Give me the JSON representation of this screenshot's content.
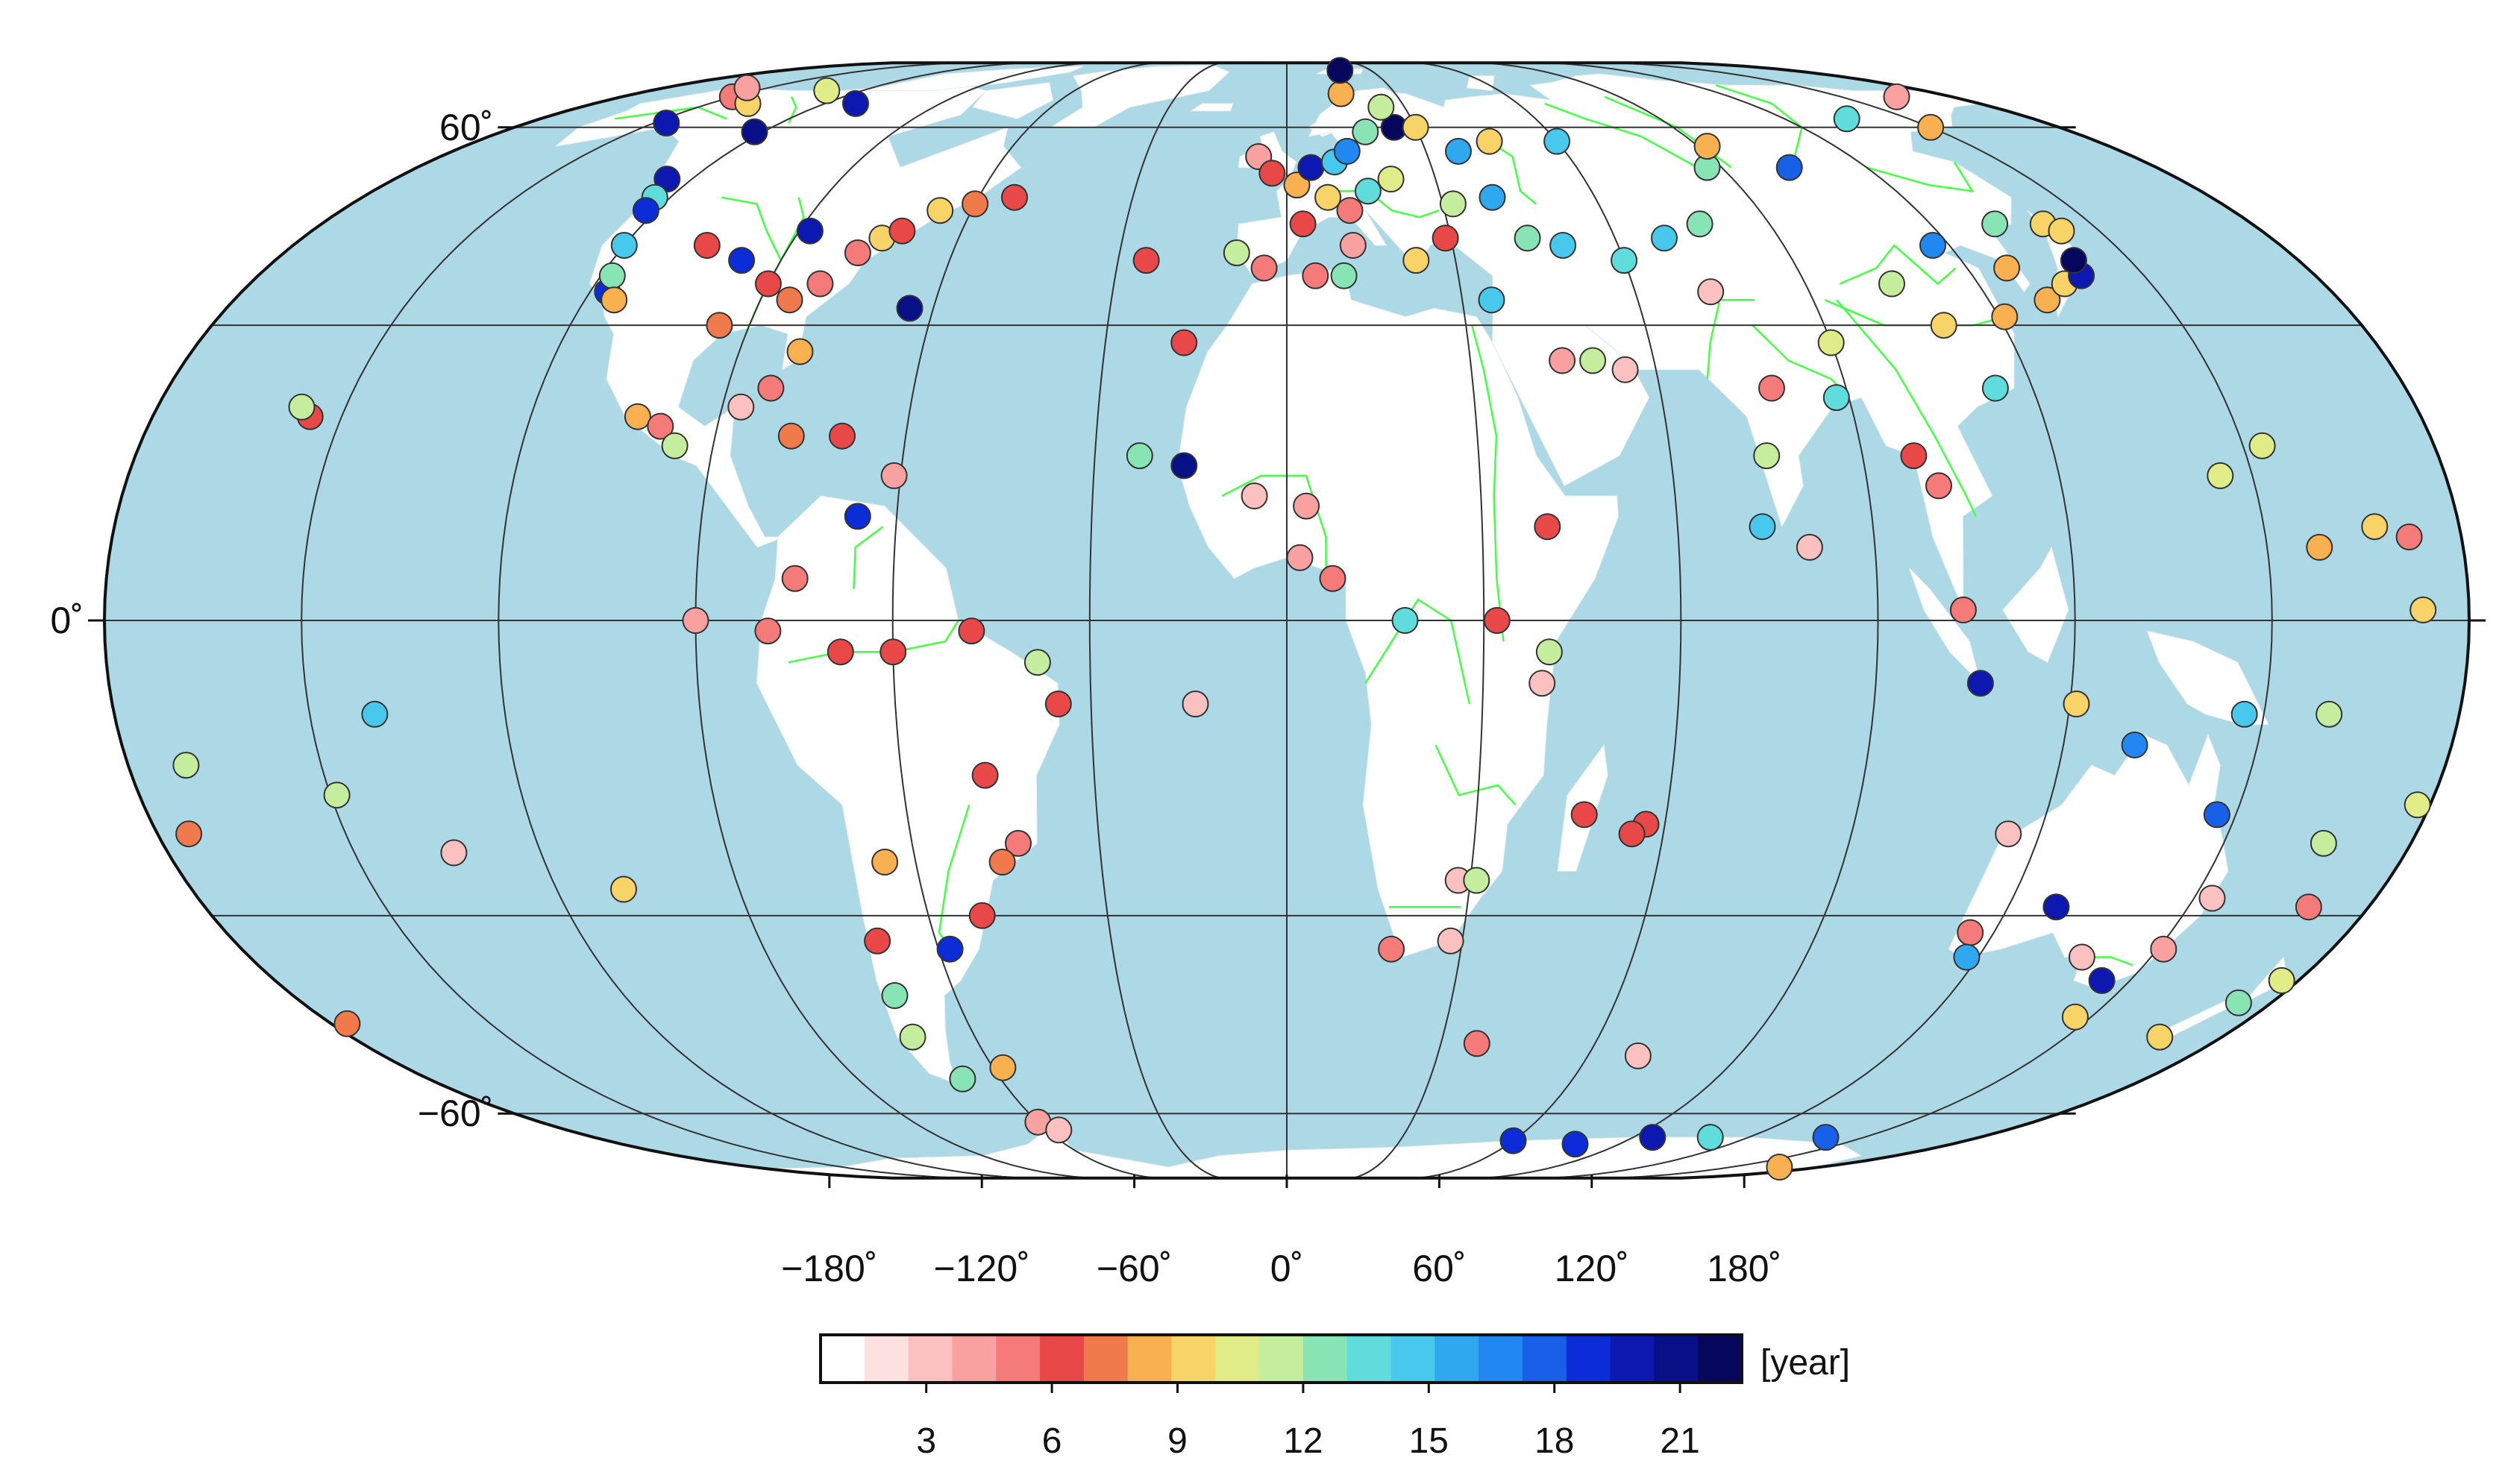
{
  "map": {
    "projection": "Robinson-like world map",
    "central_meridian": 0,
    "ocean_color": "#add8e6",
    "land_color": "#ffffff",
    "river_color": "#44ff44",
    "grid_color": "#333333",
    "lat_labels": [
      "60˚",
      "0˚",
      "−60˚"
    ],
    "lon_labels": [
      "−180˚",
      "−120˚",
      "−60˚",
      "0˚",
      "60˚",
      "120˚",
      "180˚"
    ]
  },
  "colorbar": {
    "unit_label": "[year]",
    "tick_labels": [
      "3",
      "6",
      "9",
      "12",
      "15",
      "18",
      "21"
    ],
    "colors": [
      "#ffffff",
      "#fde0e0",
      "#fbc0c0",
      "#f9a0a0",
      "#f57a7a",
      "#e84848",
      "#f07a4c",
      "#f8b050",
      "#f8d468",
      "#e0ec88",
      "#c4ee9e",
      "#88e4b4",
      "#60dcdc",
      "#48c8ec",
      "#30a8f0",
      "#2088f0",
      "#1860e8",
      "#0c2cd8",
      "#0c18b0",
      "#081088",
      "#06065c"
    ]
  },
  "chart_data": {
    "type": "scatter",
    "description_of_values": "monitoring stations colored by record length in years",
    "color_range": [
      1,
      22
    ],
    "points": [
      {
        "lon": -150,
        "lat": 68,
        "v": 5
      },
      {
        "lon": -130,
        "lat": 70,
        "v": 10
      },
      {
        "lon": -140,
        "lat": 66,
        "v": 9
      },
      {
        "lon": -156,
        "lat": 71,
        "v": 4
      },
      {
        "lon": -147,
        "lat": 61,
        "v": 20
      },
      {
        "lon": -122,
        "lat": 59,
        "v": 21
      },
      {
        "lon": -112,
        "lat": 66,
        "v": 20
      },
      {
        "lon": -125,
        "lat": 50,
        "v": 20
      },
      {
        "lon": -123,
        "lat": 47,
        "v": 14
      },
      {
        "lon": -122,
        "lat": 45,
        "v": 19
      },
      {
        "lon": -120,
        "lat": 40,
        "v": 15
      },
      {
        "lon": -117,
        "lat": 34,
        "v": 19
      },
      {
        "lon": -118,
        "lat": 36,
        "v": 13
      },
      {
        "lon": -115,
        "lat": 33,
        "v": 8
      },
      {
        "lon": -105,
        "lat": 40,
        "v": 6
      },
      {
        "lon": -97,
        "lat": 38,
        "v": 19
      },
      {
        "lon": -95,
        "lat": 30,
        "v": 7
      },
      {
        "lon": -90,
        "lat": 35,
        "v": 6
      },
      {
        "lon": -88,
        "lat": 42,
        "v": 20
      },
      {
        "lon": -85,
        "lat": 33,
        "v": 7
      },
      {
        "lon": -80,
        "lat": 27,
        "v": 8
      },
      {
        "lon": -81,
        "lat": 35,
        "v": 5
      },
      {
        "lon": -77,
        "lat": 39,
        "v": 5
      },
      {
        "lon": -74,
        "lat": 41,
        "v": 9
      },
      {
        "lon": -71,
        "lat": 42,
        "v": 6
      },
      {
        "lon": -66,
        "lat": 45,
        "v": 9
      },
      {
        "lon": -64,
        "lat": 32,
        "v": 21
      },
      {
        "lon": -60,
        "lat": 46,
        "v": 7
      },
      {
        "lon": -53,
        "lat": 47,
        "v": 6
      },
      {
        "lon": -103,
        "lat": 20,
        "v": 8
      },
      {
        "lon": -99,
        "lat": 19,
        "v": 5
      },
      {
        "lon": -96,
        "lat": 17,
        "v": 12
      },
      {
        "lon": -87,
        "lat": 21,
        "v": 3
      },
      {
        "lon": -83,
        "lat": 23,
        "v": 5
      },
      {
        "lon": -78,
        "lat": 18,
        "v": 7
      },
      {
        "lon": -70,
        "lat": 18,
        "v": 6
      },
      {
        "lon": -61,
        "lat": 14,
        "v": 4
      },
      {
        "lon": -66,
        "lat": 10,
        "v": 19
      },
      {
        "lon": -75,
        "lat": 4,
        "v": 5
      },
      {
        "lon": -79,
        "lat": -1,
        "v": 5
      },
      {
        "lon": -68,
        "lat": -3,
        "v": 6
      },
      {
        "lon": -60,
        "lat": -3,
        "v": 6
      },
      {
        "lon": -48,
        "lat": -1,
        "v": 6
      },
      {
        "lon": -38,
        "lat": -4,
        "v": 11
      },
      {
        "lon": -35,
        "lat": -8,
        "v": 6
      },
      {
        "lon": -47,
        "lat": -15,
        "v": 6
      },
      {
        "lon": -43,
        "lat": -22,
        "v": 5
      },
      {
        "lon": -46,
        "lat": -24,
        "v": 7
      },
      {
        "lon": -51,
        "lat": -30,
        "v": 6
      },
      {
        "lon": -58,
        "lat": -34,
        "v": 19
      },
      {
        "lon": -65,
        "lat": -24,
        "v": 8
      },
      {
        "lon": -70,
        "lat": -33,
        "v": 6
      },
      {
        "lon": -71,
        "lat": -40,
        "v": 13
      },
      {
        "lon": -72,
        "lat": -46,
        "v": 11
      },
      {
        "lon": -68,
        "lat": -53,
        "v": 13
      },
      {
        "lon": -58,
        "lat": -51,
        "v": 8
      },
      {
        "lon": -60,
        "lat": -62,
        "v": 4
      },
      {
        "lon": -57,
        "lat": -64,
        "v": 3
      },
      {
        "lon": -155,
        "lat": 20,
        "v": 6
      },
      {
        "lon": -157,
        "lat": 21,
        "v": 11
      },
      {
        "lon": -149,
        "lat": -17,
        "v": 12
      },
      {
        "lon": -140,
        "lat": -9,
        "v": 15
      },
      {
        "lon": -171,
        "lat": -14,
        "v": 11
      },
      {
        "lon": -175,
        "lat": -21,
        "v": 7
      },
      {
        "lon": -109,
        "lat": -27,
        "v": 9
      },
      {
        "lon": -134,
        "lat": -23,
        "v": 3
      },
      {
        "lon": -177,
        "lat": -44,
        "v": 7
      },
      {
        "lon": -90,
        "lat": 0,
        "v": 4
      },
      {
        "lon": -25,
        "lat": 38,
        "v": 6
      },
      {
        "lon": -17,
        "lat": 28,
        "v": 6
      },
      {
        "lon": -16,
        "lat": 15,
        "v": 21
      },
      {
        "lon": -23,
        "lat": 16,
        "v": 13
      },
      {
        "lon": -14,
        "lat": -8,
        "v": 3
      },
      {
        "lon": -6,
        "lat": 54,
        "v": 4
      },
      {
        "lon": -3,
        "lat": 51,
        "v": 6
      },
      {
        "lon": 2,
        "lat": 49,
        "v": 8
      },
      {
        "lon": 5,
        "lat": 52,
        "v": 20
      },
      {
        "lon": 10,
        "lat": 53,
        "v": 15
      },
      {
        "lon": 13,
        "lat": 55,
        "v": 17
      },
      {
        "lon": 18,
        "lat": 59,
        "v": 13
      },
      {
        "lon": 25,
        "lat": 60,
        "v": 22
      },
      {
        "lon": 24,
        "lat": 65,
        "v": 11
      },
      {
        "lon": 30,
        "lat": 60,
        "v": 9
      },
      {
        "lon": 15,
        "lat": 69,
        "v": 8
      },
      {
        "lon": 19,
        "lat": 79,
        "v": 22
      },
      {
        "lon": 8,
        "lat": 47,
        "v": 9
      },
      {
        "lon": 12,
        "lat": 45,
        "v": 5
      },
      {
        "lon": 16,
        "lat": 48,
        "v": 14
      },
      {
        "lon": 21,
        "lat": 50,
        "v": 10
      },
      {
        "lon": 3,
        "lat": 43,
        "v": 6
      },
      {
        "lon": -9,
        "lat": 39,
        "v": 12
      },
      {
        "lon": -4,
        "lat": 37,
        "v": 5
      },
      {
        "lon": 12,
        "lat": 40,
        "v": 4
      },
      {
        "lon": 23,
        "lat": 38,
        "v": 9
      },
      {
        "lon": 29,
        "lat": 41,
        "v": 6
      },
      {
        "lon": 35,
        "lat": 33,
        "v": 15
      },
      {
        "lon": 44,
        "lat": 41,
        "v": 13
      },
      {
        "lon": 50,
        "lat": 40,
        "v": 15
      },
      {
        "lon": 37,
        "lat": 55,
        "v": 16
      },
      {
        "lon": 45,
        "lat": 57,
        "v": 9
      },
      {
        "lon": 60,
        "lat": 57,
        "v": 15
      },
      {
        "lon": 40,
        "lat": 47,
        "v": 16
      },
      {
        "lon": 32,
        "lat": 46,
        "v": 11
      },
      {
        "lon": 5,
        "lat": 36,
        "v": 5
      },
      {
        "lon": 10,
        "lat": 36,
        "v": 13
      },
      {
        "lon": 3,
        "lat": 11,
        "v": 4
      },
      {
        "lon": 2,
        "lat": 6,
        "v": 4
      },
      {
        "lon": 7,
        "lat": 4,
        "v": 5
      },
      {
        "lon": 18,
        "lat": 0,
        "v": 14
      },
      {
        "lon": -5,
        "lat": 12,
        "v": 3
      },
      {
        "lon": 32,
        "lat": 0,
        "v": 6
      },
      {
        "lon": 39,
        "lat": -6,
        "v": 3
      },
      {
        "lon": 40,
        "lat": -3,
        "v": 11
      },
      {
        "lon": 40,
        "lat": 9,
        "v": 6
      },
      {
        "lon": 45,
        "lat": 26,
        "v": 4
      },
      {
        "lon": 50,
        "lat": 26,
        "v": 11
      },
      {
        "lon": 55,
        "lat": 25,
        "v": 3
      },
      {
        "lon": 47,
        "lat": -19,
        "v": 6
      },
      {
        "lon": 57,
        "lat": -20,
        "v": 6
      },
      {
        "lon": 55,
        "lat": -21,
        "v": 6
      },
      {
        "lon": 28,
        "lat": -26,
        "v": 3
      },
      {
        "lon": 31,
        "lat": -26,
        "v": 11
      },
      {
        "lon": 18,
        "lat": -34,
        "v": 5
      },
      {
        "lon": 28,
        "lat": -33,
        "v": 3
      },
      {
        "lon": 37,
        "lat": -47,
        "v": 5
      },
      {
        "lon": 70,
        "lat": -49,
        "v": 3
      },
      {
        "lon": 60,
        "lat": 38,
        "v": 14
      },
      {
        "lon": 69,
        "lat": 41,
        "v": 15
      },
      {
        "lon": 77,
        "lat": 43,
        "v": 13
      },
      {
        "lon": 73,
        "lat": 34,
        "v": 3
      },
      {
        "lon": 78,
        "lat": 23,
        "v": 5
      },
      {
        "lon": 75,
        "lat": 16,
        "v": 11
      },
      {
        "lon": 73,
        "lat": 9,
        "v": 15
      },
      {
        "lon": 80,
        "lat": 7,
        "v": 3
      },
      {
        "lon": 88,
        "lat": 22,
        "v": 14
      },
      {
        "lon": 90,
        "lat": 28,
        "v": 10
      },
      {
        "lon": 98,
        "lat": 16,
        "v": 6
      },
      {
        "lon": 101,
        "lat": 13,
        "v": 5
      },
      {
        "lon": 103,
        "lat": 1,
        "v": 5
      },
      {
        "lon": 87,
        "lat": 52,
        "v": 13
      },
      {
        "lon": 104,
        "lat": 52,
        "v": 18
      },
      {
        "lon": 92,
        "lat": 56,
        "v": 8
      },
      {
        "lon": 117,
        "lat": 40,
        "v": 17
      },
      {
        "lon": 121,
        "lat": 31,
        "v": 8
      },
      {
        "lon": 114,
        "lat": 23,
        "v": 14
      },
      {
        "lon": 105,
        "lat": 35,
        "v": 11
      },
      {
        "lon": 110,
        "lat": 30,
        "v": 9
      },
      {
        "lon": 127,
        "lat": 37,
        "v": 8
      },
      {
        "lon": 130,
        "lat": 33,
        "v": 8
      },
      {
        "lon": 135,
        "lat": 35,
        "v": 9
      },
      {
        "lon": 139,
        "lat": 36,
        "v": 20
      },
      {
        "lon": 140,
        "lat": 38,
        "v": 22
      },
      {
        "lon": 141,
        "lat": 43,
        "v": 9
      },
      {
        "lon": 143,
        "lat": 42,
        "v": 9
      },
      {
        "lon": 132,
        "lat": 43,
        "v": 13
      },
      {
        "lon": 150,
        "lat": 60,
        "v": 8
      },
      {
        "lon": 135,
        "lat": 62,
        "v": 14
      },
      {
        "lon": 165,
        "lat": 68,
        "v": 4
      },
      {
        "lon": 145,
        "lat": 14,
        "v": 10
      },
      {
        "lon": 153,
        "lat": 17,
        "v": 10
      },
      {
        "lon": 158,
        "lat": 7,
        "v": 8
      },
      {
        "lon": 167,
        "lat": 9,
        "v": 9
      },
      {
        "lon": 173,
        "lat": 1,
        "v": 9
      },
      {
        "lon": 172,
        "lat": 8,
        "v": 5
      },
      {
        "lon": 178,
        "lat": -18,
        "v": 10
      },
      {
        "lon": 166,
        "lat": -22,
        "v": 11
      },
      {
        "lon": 160,
        "lat": -9,
        "v": 11
      },
      {
        "lon": 147,
        "lat": -9,
        "v": 15
      },
      {
        "lon": 131,
        "lat": -12,
        "v": 17
      },
      {
        "lon": 121,
        "lat": -8,
        "v": 9
      },
      {
        "lon": 106,
        "lat": -6,
        "v": 20
      },
      {
        "lon": 115,
        "lat": -21,
        "v": 3
      },
      {
        "lon": 116,
        "lat": -32,
        "v": 5
      },
      {
        "lon": 118,
        "lat": -35,
        "v": 16
      },
      {
        "lon": 128,
        "lat": -29,
        "v": 20
      },
      {
        "lon": 138,
        "lat": -35,
        "v": 3
      },
      {
        "lon": 145,
        "lat": -38,
        "v": 20
      },
      {
        "lon": 147,
        "lat": -43,
        "v": 9
      },
      {
        "lon": 151,
        "lat": -34,
        "v": 4
      },
      {
        "lon": 153,
        "lat": -28,
        "v": 3
      },
      {
        "lon": 147,
        "lat": -19,
        "v": 18
      },
      {
        "lon": 168,
        "lat": -46,
        "v": 9
      },
      {
        "lon": 174,
        "lat": -41,
        "v": 13
      },
      {
        "lon": 177,
        "lat": -38,
        "v": 10
      },
      {
        "lon": 170,
        "lat": -29,
        "v": 5
      },
      {
        "lon": 60,
        "lat": -67,
        "v": 19
      },
      {
        "lon": 78,
        "lat": -68,
        "v": 19
      },
      {
        "lon": 95,
        "lat": -66,
        "v": 20
      },
      {
        "lon": 140,
        "lat": -66,
        "v": 18
      },
      {
        "lon": 166,
        "lat": -77,
        "v": 8
      },
      {
        "lon": 110,
        "lat": -66,
        "v": 14
      }
    ]
  }
}
